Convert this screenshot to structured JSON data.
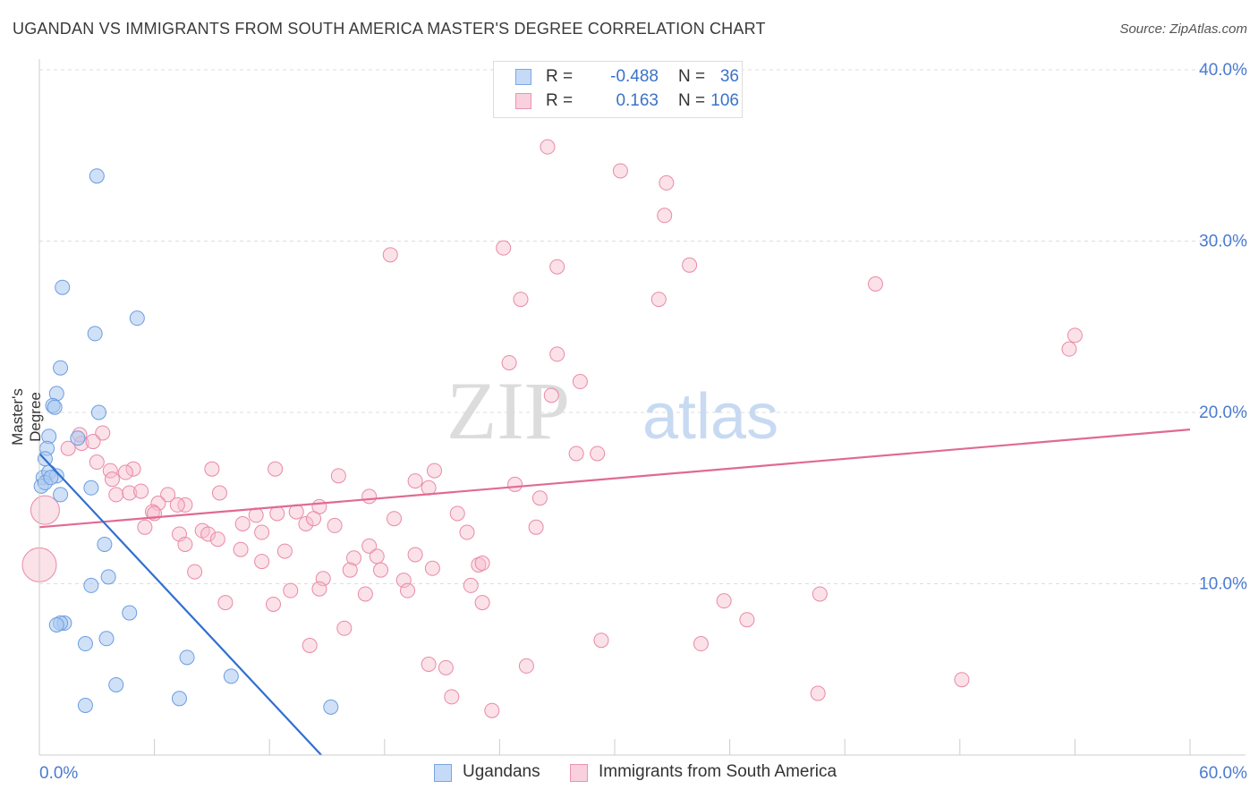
{
  "header": {
    "title": "UGANDAN VS IMMIGRANTS FROM SOUTH AMERICA MASTER'S DEGREE CORRELATION CHART",
    "source": "Source: ZipAtlas.com"
  },
  "watermark": {
    "zip": "ZIP",
    "atlas": "atlas"
  },
  "legend": {
    "rows": [
      {
        "r_label": "R =",
        "r_value": "-0.488",
        "n_label": "N =",
        "n_value": "36"
      },
      {
        "r_label": "R =",
        "r_value": "0.163",
        "n_label": "N =",
        "n_value": "106"
      }
    ]
  },
  "colors": {
    "blue_fill": "#a9c9f1",
    "blue_stroke": "#6b9de0",
    "blue_line": "#2f6fd0",
    "pink_fill": "#f6bccd",
    "pink_stroke": "#e98aa8",
    "pink_line": "#e06a94",
    "tick_label": "#4a7bd0",
    "grid": "#dddddd"
  },
  "chart_data": {
    "type": "scatter",
    "title": "UGANDAN VS IMMIGRANTS FROM SOUTH AMERICA MASTER'S DEGREE CORRELATION CHART",
    "xlabel": "",
    "ylabel": "Master's Degree",
    "xlim": [
      0,
      60
    ],
    "ylim": [
      0,
      40
    ],
    "x_tick_labels": [
      "0.0%",
      "60.0%"
    ],
    "y_ticks": [
      10,
      20,
      30,
      40
    ],
    "y_tick_labels": [
      "10.0%",
      "20.0%",
      "30.0%",
      "40.0%"
    ],
    "grid": true,
    "legend_position": "top-center",
    "series": [
      {
        "name": "Ugandans",
        "color": "#a9c9f1",
        "trend": {
          "x": [
            0.0,
            14.7
          ],
          "y": [
            17.6,
            0.0
          ]
        },
        "points": [
          [
            3.0,
            33.8
          ],
          [
            1.2,
            27.3
          ],
          [
            5.1,
            25.5
          ],
          [
            2.9,
            24.6
          ],
          [
            1.1,
            22.6
          ],
          [
            0.9,
            21.1
          ],
          [
            0.7,
            20.4
          ],
          [
            0.8,
            20.3
          ],
          [
            3.1,
            20.0
          ],
          [
            2.0,
            18.5
          ],
          [
            0.5,
            18.6
          ],
          [
            0.4,
            17.9
          ],
          [
            0.3,
            17.3
          ],
          [
            0.2,
            16.2
          ],
          [
            2.7,
            15.6
          ],
          [
            0.1,
            15.7
          ],
          [
            1.1,
            15.2
          ],
          [
            0.5,
            16.5
          ],
          [
            0.9,
            16.3
          ],
          [
            3.4,
            12.3
          ],
          [
            3.6,
            10.4
          ],
          [
            2.7,
            9.9
          ],
          [
            4.7,
            8.3
          ],
          [
            1.3,
            7.7
          ],
          [
            1.1,
            7.7
          ],
          [
            0.9,
            7.6
          ],
          [
            2.4,
            6.5
          ],
          [
            3.5,
            6.8
          ],
          [
            7.7,
            5.7
          ],
          [
            10.0,
            4.6
          ],
          [
            4.0,
            4.1
          ],
          [
            7.3,
            3.3
          ],
          [
            2.4,
            2.9
          ],
          [
            15.2,
            2.8
          ],
          [
            0.3,
            15.9
          ],
          [
            0.6,
            16.2
          ]
        ]
      },
      {
        "name": "Immigrants from South America",
        "color": "#f6bccd",
        "trend": {
          "x": [
            0.0,
            60.0
          ],
          "y": [
            13.3,
            19.0
          ]
        },
        "points": [
          [
            26.5,
            35.5
          ],
          [
            30.3,
            34.1
          ],
          [
            32.7,
            33.4
          ],
          [
            32.6,
            31.5
          ],
          [
            18.3,
            29.2
          ],
          [
            24.2,
            29.6
          ],
          [
            27.0,
            28.5
          ],
          [
            33.9,
            28.6
          ],
          [
            25.1,
            26.6
          ],
          [
            32.3,
            26.6
          ],
          [
            43.6,
            27.5
          ],
          [
            54.0,
            24.5
          ],
          [
            53.7,
            23.7
          ],
          [
            27.0,
            23.4
          ],
          [
            24.5,
            22.9
          ],
          [
            28.2,
            21.8
          ],
          [
            26.7,
            21.0
          ],
          [
            28.0,
            17.6
          ],
          [
            0.3,
            14.3
          ],
          [
            0.0,
            11.1
          ],
          [
            1.5,
            17.9
          ],
          [
            2.2,
            18.2
          ],
          [
            3.3,
            18.8
          ],
          [
            2.1,
            18.7
          ],
          [
            3.0,
            17.1
          ],
          [
            2.8,
            18.3
          ],
          [
            3.7,
            16.6
          ],
          [
            4.9,
            16.7
          ],
          [
            4.5,
            16.5
          ],
          [
            3.8,
            16.1
          ],
          [
            4.0,
            15.2
          ],
          [
            4.7,
            15.3
          ],
          [
            5.3,
            15.4
          ],
          [
            6.7,
            15.2
          ],
          [
            6.2,
            14.7
          ],
          [
            5.9,
            14.2
          ],
          [
            6.0,
            14.1
          ],
          [
            7.6,
            14.6
          ],
          [
            7.2,
            14.6
          ],
          [
            9.0,
            16.7
          ],
          [
            9.4,
            15.3
          ],
          [
            12.3,
            16.7
          ],
          [
            15.6,
            16.3
          ],
          [
            17.2,
            15.1
          ],
          [
            19.6,
            16.0
          ],
          [
            20.6,
            16.6
          ],
          [
            20.3,
            15.6
          ],
          [
            24.8,
            15.8
          ],
          [
            14.6,
            14.5
          ],
          [
            13.4,
            14.2
          ],
          [
            11.3,
            14.0
          ],
          [
            12.4,
            14.1
          ],
          [
            10.6,
            13.5
          ],
          [
            13.9,
            13.5
          ],
          [
            14.3,
            13.8
          ],
          [
            15.4,
            13.4
          ],
          [
            18.5,
            13.8
          ],
          [
            21.8,
            14.1
          ],
          [
            25.9,
            13.3
          ],
          [
            22.3,
            13.0
          ],
          [
            11.6,
            13.0
          ],
          [
            8.5,
            13.1
          ],
          [
            8.8,
            12.9
          ],
          [
            9.3,
            12.6
          ],
          [
            7.3,
            12.9
          ],
          [
            5.5,
            13.3
          ],
          [
            7.6,
            12.3
          ],
          [
            10.5,
            12.0
          ],
          [
            12.8,
            11.9
          ],
          [
            11.6,
            11.3
          ],
          [
            16.4,
            11.5
          ],
          [
            17.2,
            12.2
          ],
          [
            17.6,
            11.6
          ],
          [
            19.6,
            11.7
          ],
          [
            16.2,
            10.8
          ],
          [
            17.8,
            10.8
          ],
          [
            20.5,
            10.9
          ],
          [
            22.9,
            11.1
          ],
          [
            23.1,
            11.2
          ],
          [
            8.1,
            10.7
          ],
          [
            14.8,
            10.3
          ],
          [
            19.0,
            10.2
          ],
          [
            14.6,
            9.7
          ],
          [
            19.2,
            9.6
          ],
          [
            13.1,
            9.6
          ],
          [
            17.0,
            9.4
          ],
          [
            22.5,
            9.9
          ],
          [
            35.7,
            9.0
          ],
          [
            40.7,
            9.4
          ],
          [
            23.1,
            8.9
          ],
          [
            9.7,
            8.9
          ],
          [
            12.2,
            8.8
          ],
          [
            36.9,
            7.9
          ],
          [
            15.9,
            7.4
          ],
          [
            14.1,
            6.4
          ],
          [
            29.3,
            6.7
          ],
          [
            34.5,
            6.5
          ],
          [
            20.3,
            5.3
          ],
          [
            21.2,
            5.1
          ],
          [
            25.4,
            5.2
          ],
          [
            40.6,
            3.6
          ],
          [
            21.5,
            3.4
          ],
          [
            23.6,
            2.6
          ],
          [
            48.1,
            4.4
          ],
          [
            29.1,
            17.6
          ],
          [
            26.1,
            15.0
          ]
        ]
      }
    ]
  },
  "bottom_legend": {
    "ugandans": "Ugandans",
    "immigrants": "Immigrants from South America"
  }
}
